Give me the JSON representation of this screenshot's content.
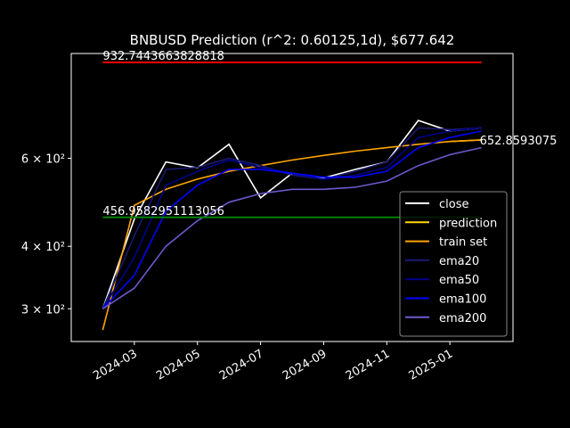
{
  "chart_data": {
    "type": "line",
    "title": "BNBUSD Prediction (r^2: 0.60125,1d), $677.642",
    "log_scale_y": true,
    "background": "#000000",
    "x": [
      "2024-02",
      "2024-03",
      "2024-04",
      "2024-05",
      "2024-06",
      "2024-07",
      "2024-08",
      "2024-09",
      "2024-10",
      "2024-11",
      "2024-12",
      "2025-01",
      "2025-02"
    ],
    "xlim": [
      "2024-01",
      "2025-03"
    ],
    "xticks": [
      "2024-03",
      "2024-05",
      "2024-07",
      "2024-09",
      "2024-11",
      "2025-01"
    ],
    "ylim": [
      258,
      972
    ],
    "yticks": [
      {
        "value": 300,
        "label": "3 × 10²"
      },
      {
        "value": 400,
        "label": "4 × 10²"
      },
      {
        "value": 600,
        "label": "6 × 10²"
      }
    ],
    "series": [
      {
        "name": "close",
        "color": "#ffffff",
        "values": [
          300,
          454,
          590,
          574,
          640,
          500,
          560,
          548,
          570,
          590,
          714,
          680,
          690
        ]
      },
      {
        "name": "prediction",
        "color": "#ffd700",
        "values": [
          null,
          null,
          null,
          null,
          null,
          null,
          null,
          null,
          null,
          null,
          null,
          648,
          652.8593075
        ]
      },
      {
        "name": "train set",
        "color": "#ffa500",
        "values": [
          272,
          483,
          520,
          545,
          565,
          580,
          595,
          608,
          620,
          630,
          640,
          648,
          652.8593075
        ]
      },
      {
        "name": "ema20",
        "color": "#191970",
        "values": [
          300,
          420,
          570,
          575,
          600,
          580,
          555,
          545,
          565,
          590,
          690,
          685,
          690
        ]
      },
      {
        "name": "ema50",
        "color": "#00008b",
        "values": [
          300,
          380,
          530,
          565,
          595,
          575,
          560,
          545,
          555,
          575,
          660,
          680,
          690
        ]
      },
      {
        "name": "ema100",
        "color": "#0000ff",
        "values": [
          300,
          350,
          470,
          530,
          570,
          570,
          560,
          550,
          550,
          565,
          630,
          660,
          680
        ]
      },
      {
        "name": "ema200",
        "color": "#6a5acd",
        "values": [
          300,
          330,
          400,
          450,
          490,
          510,
          520,
          520,
          525,
          540,
          580,
          610,
          630
        ]
      }
    ],
    "hlines": [
      {
        "value": 932.7443663828818,
        "label": "932.7443663828818",
        "color": "#ff0000"
      },
      {
        "value": 456.9582951113056,
        "label": "456.9582951113056",
        "color": "#008000"
      }
    ],
    "annotations": [
      {
        "x": "2025-02",
        "value": 652.8593075,
        "label": "652.8593075"
      }
    ],
    "legend": "lower right"
  }
}
